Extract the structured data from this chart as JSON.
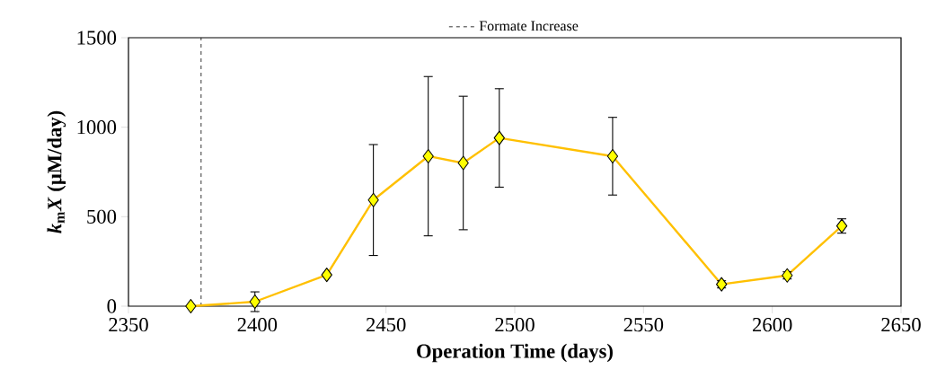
{
  "chart_data": {
    "type": "line",
    "xlabel": "Operation Time (days)",
    "ylabel": "*k*$_{m}$*X* (μM/day)",
    "x": [
      2374.2,
      2399.1,
      2427.0,
      2445.1,
      2466.4,
      2480.0,
      2494.0,
      2538.0,
      2580.3,
      2605.8,
      2627.0
    ],
    "series": [
      {
        "color": "#ffc000",
        "values": [
          0,
          25,
          175,
          593,
          838,
          800,
          940,
          838,
          122,
          172,
          448
        ],
        "errors": [
          null,
          55,
          null,
          310,
          445,
          373,
          275,
          217,
          20,
          20,
          40
        ]
      }
    ],
    "marker": "diamond",
    "line_style": "solid",
    "xlim": [
      2350,
      2650
    ],
    "xticks": [
      2350,
      2400,
      2450,
      2500,
      2550,
      2600,
      2650
    ],
    "ylim": [
      0,
      1500
    ],
    "yticks": [
      0,
      500,
      1000,
      1500
    ],
    "ref_lines": [
      {
        "axis": "x",
        "value": 2378.2,
        "label": "Formate Increase",
        "color": "#000000",
        "line_style": "dashed"
      }
    ],
    "legend": "top",
    "grid": false
  }
}
